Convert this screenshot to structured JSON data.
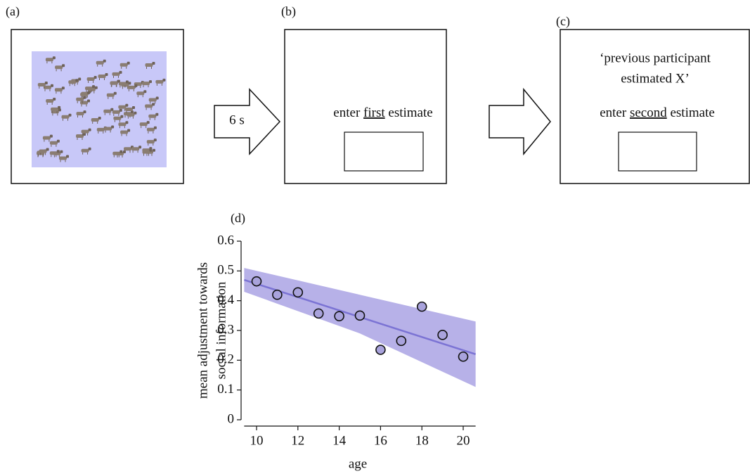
{
  "panels": {
    "a": {
      "label": "(a)"
    },
    "arrow": {
      "label": "6 s"
    },
    "b": {
      "label": "(b)",
      "prompt_before": "enter ",
      "prompt_underlined": "first",
      "prompt_after": " estimate"
    },
    "c": {
      "label": "(c)",
      "social_line1": "‘previous participant",
      "social_line2": "estimated X’",
      "prompt_before": "enter ",
      "prompt_underlined": "second",
      "prompt_after": " estimate"
    }
  },
  "chart_data": {
    "type": "scatter",
    "panel_label": "(d)",
    "x_label": "age",
    "y_label": [
      "mean adjustment towards",
      "social information"
    ],
    "x": [
      10,
      11,
      12,
      13,
      14,
      15,
      16,
      17,
      18,
      19,
      20
    ],
    "values": [
      0.465,
      0.42,
      0.428,
      0.357,
      0.348,
      0.35,
      0.235,
      0.265,
      0.38,
      0.285,
      0.212
    ],
    "color": "#a9a3dc",
    "fit": {
      "x": [
        9.4,
        20.6
      ],
      "values": [
        0.47,
        0.22
      ],
      "color": "#7b73d4"
    },
    "band": {
      "x": [
        9.4,
        15,
        20.6
      ],
      "upper": [
        0.51,
        0.42,
        0.33
      ],
      "lower": [
        0.43,
        0.29,
        0.11
      ],
      "color": "#b7b1e8"
    },
    "xlim": [
      9.4,
      20.6
    ],
    "ylim": [
      0,
      0.6
    ],
    "xticks": [
      10,
      12,
      14,
      16,
      18,
      20
    ],
    "yticks": [
      0,
      0.1,
      0.2,
      0.3,
      0.4,
      0.5,
      0.6
    ]
  }
}
